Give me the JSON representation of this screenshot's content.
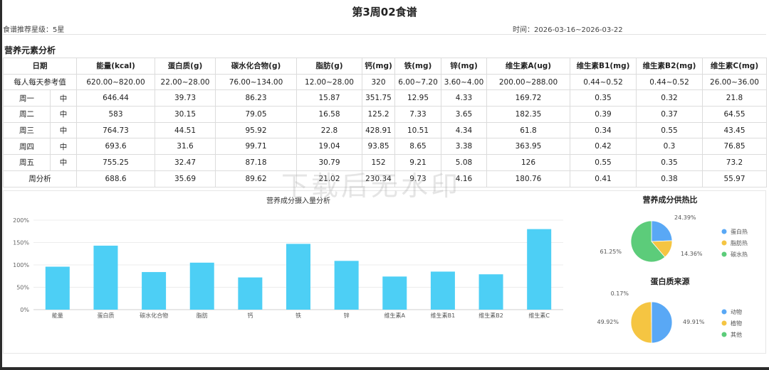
{
  "page": {
    "title": "第3周02食谱",
    "rating_label": "食谱推荐星级：5星",
    "time_label": "时间：2026-03-16~2026-03-22",
    "watermark": "下载后无水印"
  },
  "section": {
    "title": "营养元素分析"
  },
  "table": {
    "headers": [
      "日期",
      "能量(kcal)",
      "蛋白质(g)",
      "碳水化合物(g)",
      "脂肪(g)",
      "钙(mg)",
      "铁(mg)",
      "锌(mg)",
      "维生素A(ug)",
      "维生素B1(mg)",
      "维生素B2(mg)",
      "维生素C(mg)"
    ],
    "reference": {
      "label": "每人每天参考值",
      "values": [
        "620.00~820.00",
        "22.00~28.00",
        "76.00~134.00",
        "12.00~28.00",
        "320",
        "6.00~7.20",
        "3.60~4.00",
        "200.00~288.00",
        "0.44~0.52",
        "0.44~0.52",
        "26.00~36.00"
      ]
    },
    "rows": [
      {
        "day": "周一",
        "meal": "中",
        "values": [
          "646.44",
          "39.73",
          "86.23",
          "15.87",
          "351.75",
          "12.95",
          "4.33",
          "169.72",
          "0.35",
          "0.32",
          "21.8"
        ]
      },
      {
        "day": "周二",
        "meal": "中",
        "values": [
          "583",
          "30.15",
          "79.05",
          "16.58",
          "125.2",
          "7.33",
          "3.65",
          "182.35",
          "0.39",
          "0.37",
          "64.55"
        ]
      },
      {
        "day": "周三",
        "meal": "中",
        "values": [
          "764.73",
          "44.51",
          "95.92",
          "22.8",
          "428.91",
          "10.51",
          "4.34",
          "61.8",
          "0.34",
          "0.55",
          "43.45"
        ]
      },
      {
        "day": "周四",
        "meal": "中",
        "values": [
          "693.6",
          "31.6",
          "99.71",
          "19.04",
          "93.85",
          "8.65",
          "3.38",
          "363.95",
          "0.42",
          "0.3",
          "76.85"
        ]
      },
      {
        "day": "周五",
        "meal": "中",
        "values": [
          "755.25",
          "32.47",
          "87.18",
          "30.79",
          "152",
          "9.21",
          "5.08",
          "126",
          "0.55",
          "0.35",
          "73.2"
        ]
      }
    ],
    "summary": {
      "label": "周分析",
      "values": [
        "688.6",
        "35.69",
        "89.62",
        "21.02",
        "230.34",
        "9.73",
        "4.16",
        "180.76",
        "0.41",
        "0.38",
        "55.97"
      ]
    }
  },
  "chart_data": [
    {
      "type": "bar",
      "title": "营养成分摄入量分析",
      "categories": [
        "能量",
        "蛋白质",
        "碳水化合物",
        "脂肪",
        "钙",
        "铁",
        "锌",
        "维生素A",
        "维生素B1",
        "维生素B2",
        "维生素C"
      ],
      "values": [
        96,
        143,
        84,
        105,
        72,
        147,
        109,
        74,
        85,
        79,
        180
      ],
      "ylim": [
        0,
        200
      ],
      "yticks": [
        "0%",
        "50%",
        "100%",
        "150%",
        "200%"
      ],
      "ytick_values": [
        0,
        50,
        100,
        150,
        200
      ],
      "color": "#4dcff5",
      "grid": true
    },
    {
      "type": "pie",
      "title": "营养成分供热比",
      "slices": [
        {
          "name": "蛋白热",
          "value": 24.39,
          "label": "24.39%",
          "color": "#59a8f5"
        },
        {
          "name": "脂肪热",
          "value": 14.36,
          "label": "14.36%",
          "color": "#f5c542"
        },
        {
          "name": "碳水热",
          "value": 61.25,
          "label": "61.25%",
          "color": "#5ccc7a"
        }
      ],
      "legend": "right"
    },
    {
      "type": "pie",
      "title": "蛋白质来源",
      "slices": [
        {
          "name": "动物",
          "value": 49.91,
          "label": "49.91%",
          "color": "#59a8f5"
        },
        {
          "name": "植物",
          "value": 49.92,
          "label": "49.92%",
          "color": "#f5c542"
        },
        {
          "name": "其他",
          "value": 0.17,
          "label": "0.17%",
          "color": "#5ccc7a"
        }
      ],
      "legend": "right"
    }
  ]
}
